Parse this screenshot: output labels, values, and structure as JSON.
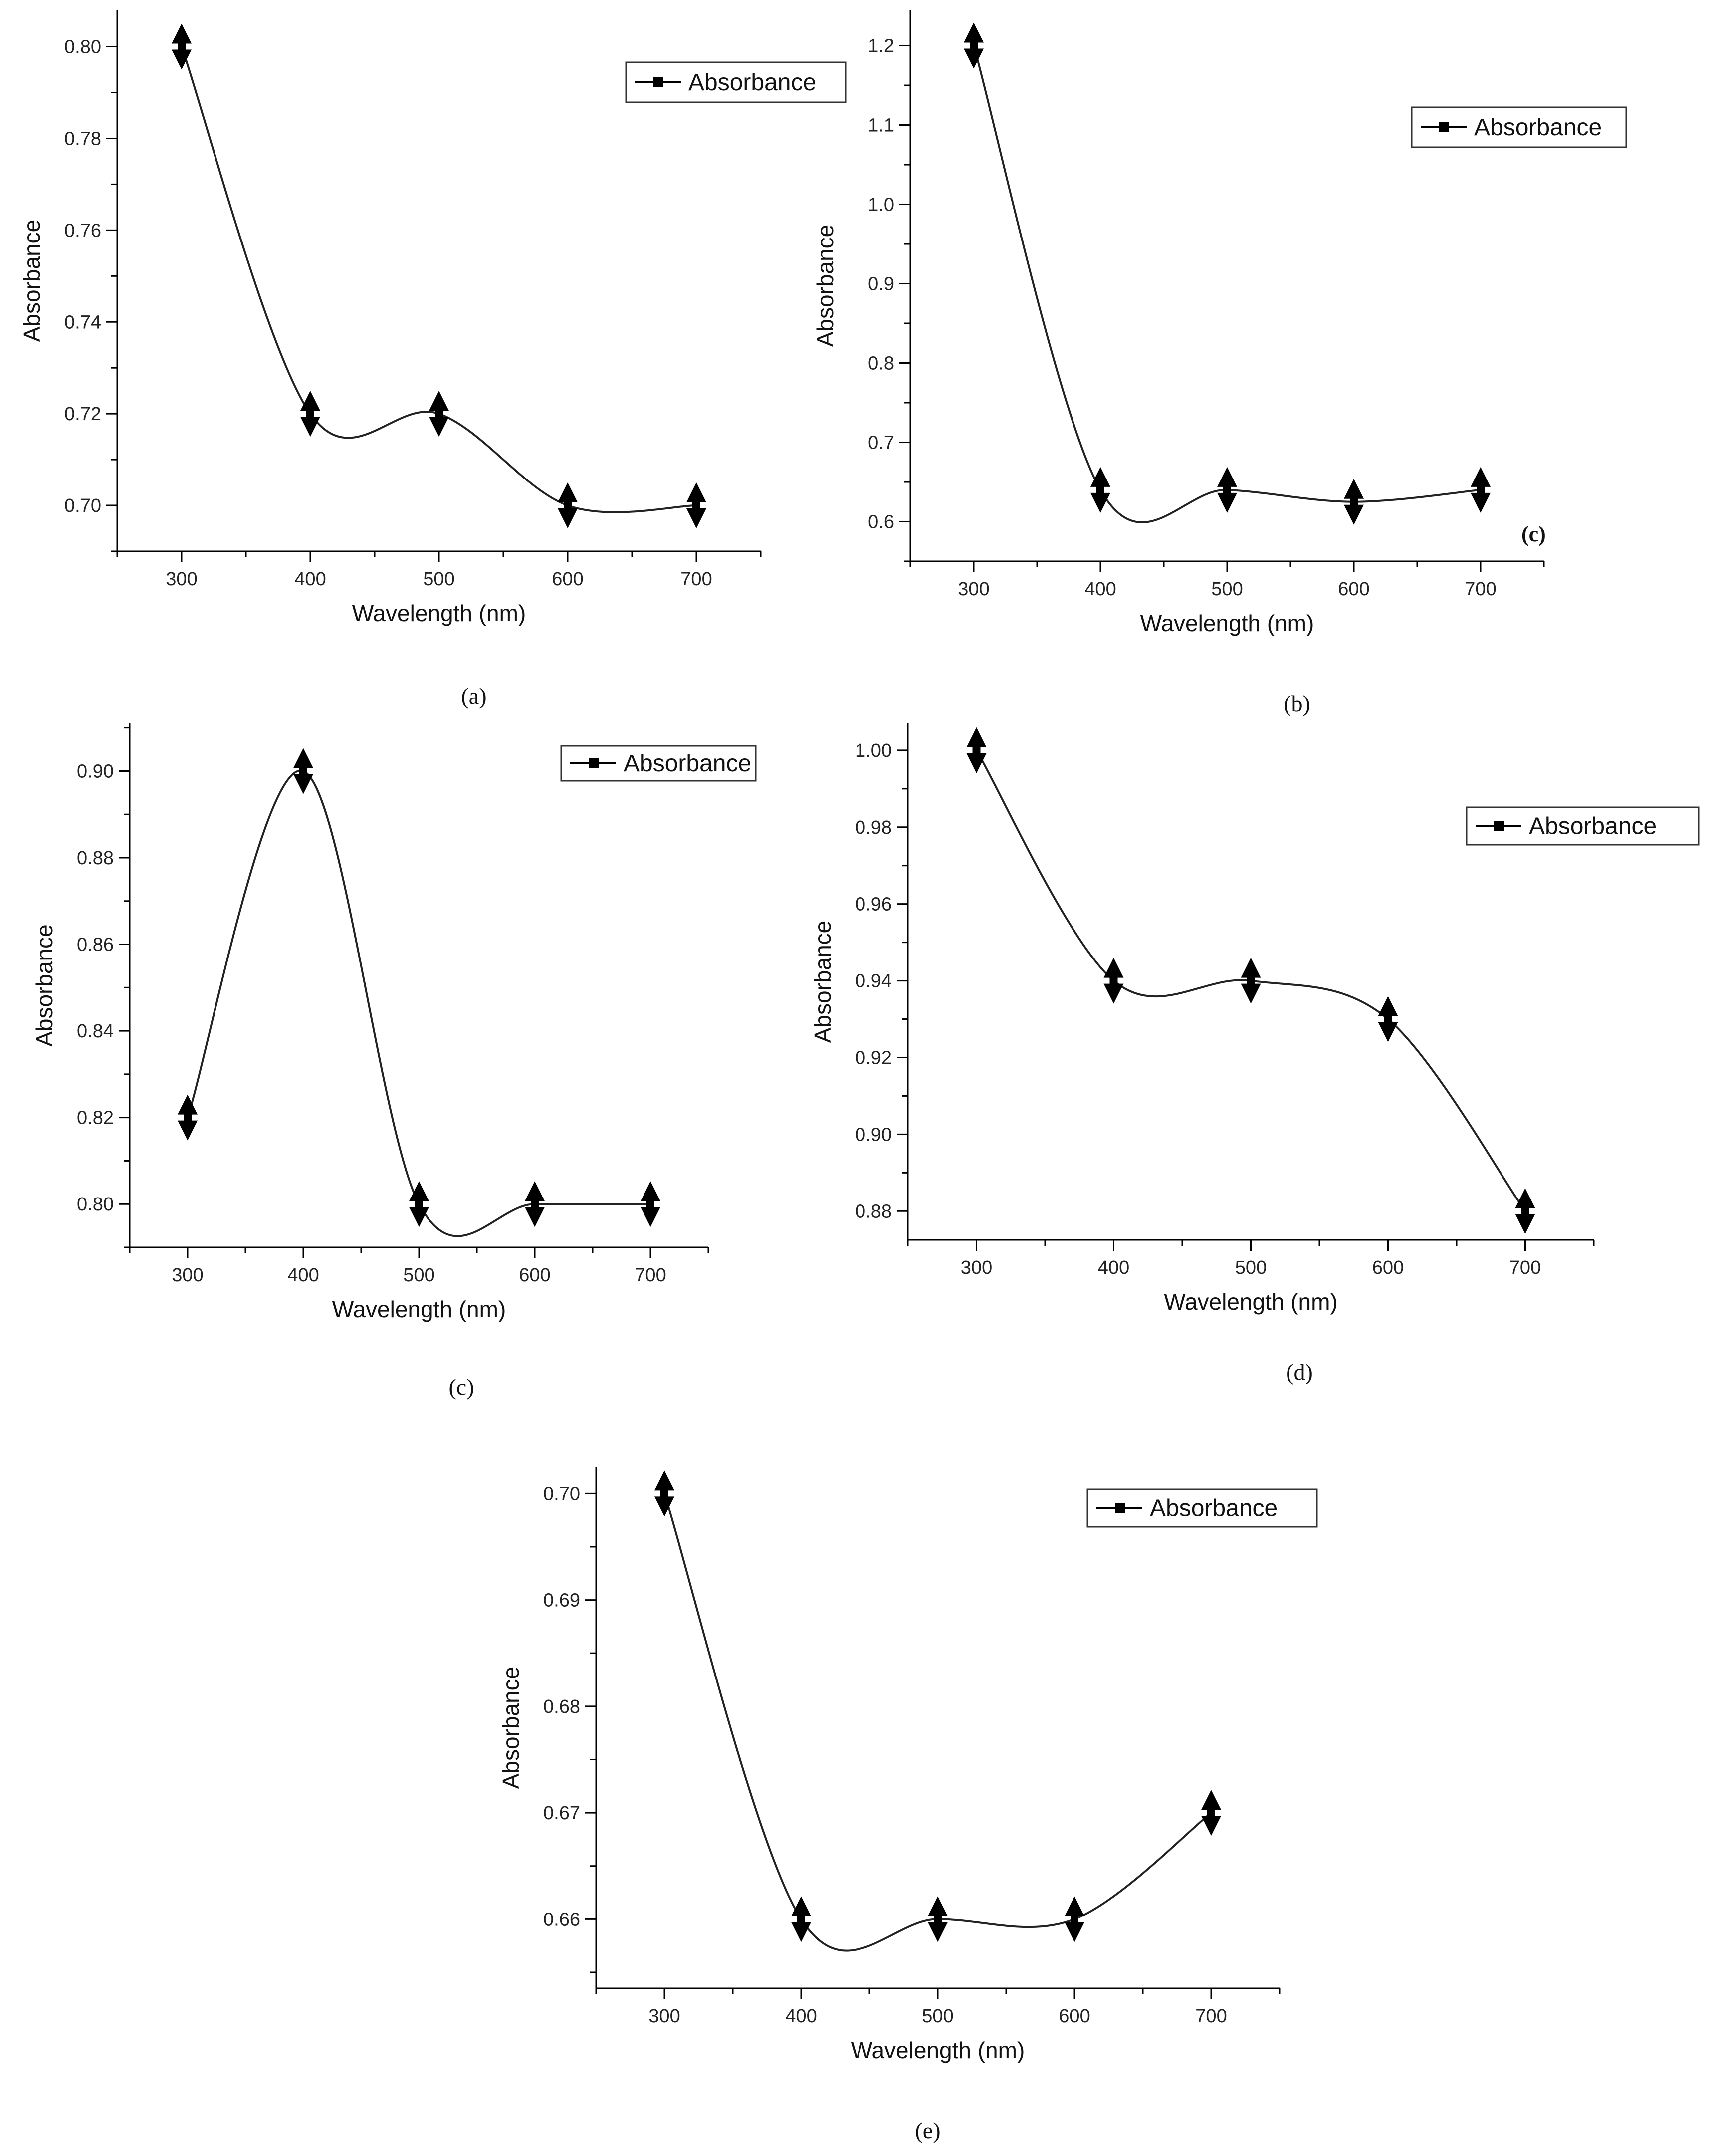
{
  "figure": {
    "legend_label": "Absorbance",
    "series_color": "#000000"
  },
  "chart_data": [
    {
      "id": "a",
      "type": "line",
      "caption": "(a)",
      "xlabel": "Wavelength (nm)",
      "ylabel": "Absorbance",
      "legend": "Absorbance",
      "legend_position": "top-right",
      "x": [
        300,
        400,
        500,
        600,
        700
      ],
      "series": [
        {
          "name": "Absorbance",
          "values": [
            0.8,
            0.72,
            0.72,
            0.7,
            0.7
          ]
        }
      ],
      "xlim": [
        250,
        750
      ],
      "ylim": [
        0.69,
        0.808
      ],
      "xticks": [
        300,
        400,
        500,
        600,
        700
      ],
      "yticks": [
        0.7,
        0.72,
        0.74,
        0.76,
        0.78,
        0.8
      ],
      "ytick_labels": [
        "0.70",
        "0.72",
        "0.74",
        "0.76",
        "0.78",
        "0.80"
      ],
      "corner_tag": ""
    },
    {
      "id": "b",
      "type": "line",
      "caption": "(b)",
      "xlabel": "Wavelength (nm)",
      "ylabel": "Absorbance",
      "legend": "Absorbance",
      "legend_position": "top-right",
      "x": [
        300,
        400,
        500,
        600,
        700
      ],
      "series": [
        {
          "name": "Absorbance",
          "values": [
            1.2,
            0.64,
            0.64,
            0.625,
            0.64
          ]
        }
      ],
      "xlim": [
        250,
        750
      ],
      "ylim": [
        0.55,
        1.245
      ],
      "xticks": [
        300,
        400,
        500,
        600,
        700
      ],
      "yticks": [
        0.6,
        0.7,
        0.8,
        0.9,
        1.0,
        1.1,
        1.2
      ],
      "ytick_labels": [
        "0.6",
        "0.7",
        "0.8",
        "0.9",
        "1.0",
        "1.1",
        "1.2"
      ],
      "corner_tag": "(c)"
    },
    {
      "id": "c",
      "type": "line",
      "caption": "(c)",
      "xlabel": "Wavelength (nm)",
      "ylabel": "Absorbance",
      "legend": "Absorbance",
      "legend_position": "top-right",
      "x": [
        300,
        400,
        500,
        600,
        700
      ],
      "series": [
        {
          "name": "Absorbance",
          "values": [
            0.82,
            0.9,
            0.8,
            0.8,
            0.8
          ]
        }
      ],
      "xlim": [
        250,
        750
      ],
      "ylim": [
        0.79,
        0.911
      ],
      "xticks": [
        300,
        400,
        500,
        600,
        700
      ],
      "yticks": [
        0.8,
        0.82,
        0.84,
        0.86,
        0.88,
        0.9
      ],
      "ytick_labels": [
        "0.80",
        "0.82",
        "0.84",
        "0.86",
        "0.88",
        "0.90"
      ],
      "corner_tag": ""
    },
    {
      "id": "d",
      "type": "line",
      "caption": "(d)",
      "xlabel": "Wavelength (nm)",
      "ylabel": "Absorbance",
      "legend": "Absorbance",
      "legend_position": "top-right",
      "x": [
        300,
        400,
        500,
        600,
        700
      ],
      "series": [
        {
          "name": "Absorbance",
          "values": [
            1.0,
            0.94,
            0.94,
            0.93,
            0.88
          ]
        }
      ],
      "xlim": [
        250,
        750
      ],
      "ylim": [
        0.8725,
        1.007
      ],
      "xticks": [
        300,
        400,
        500,
        600,
        700
      ],
      "yticks": [
        0.88,
        0.9,
        0.92,
        0.94,
        0.96,
        0.98,
        1.0
      ],
      "ytick_labels": [
        "0.88",
        "0.90",
        "0.92",
        "0.94",
        "0.96",
        "0.98",
        "1.00"
      ],
      "corner_tag": ""
    },
    {
      "id": "e",
      "type": "line",
      "caption": "(e)",
      "xlabel": "Wavelength (nm)",
      "ylabel": "Absorbance",
      "legend": "Absorbance",
      "legend_position": "top-right",
      "x": [
        300,
        400,
        500,
        600,
        700
      ],
      "series": [
        {
          "name": "Absorbance",
          "values": [
            0.7,
            0.66,
            0.66,
            0.66,
            0.67
          ]
        }
      ],
      "xlim": [
        250,
        750
      ],
      "ylim": [
        0.6535,
        0.7025
      ],
      "xticks": [
        300,
        400,
        500,
        600,
        700
      ],
      "yticks": [
        0.66,
        0.67,
        0.68,
        0.69,
        0.7
      ],
      "ytick_labels": [
        "0.66",
        "0.67",
        "0.68",
        "0.69",
        "0.70"
      ],
      "corner_tag": ""
    }
  ]
}
